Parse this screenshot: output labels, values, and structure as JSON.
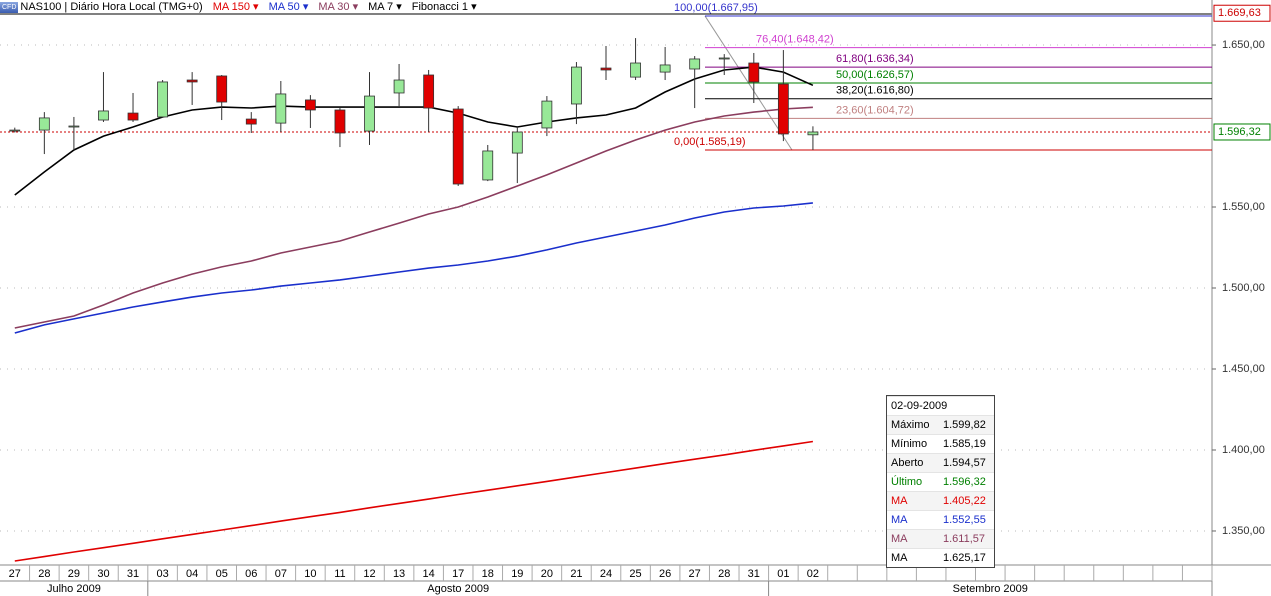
{
  "chart_data": {
    "type": "candlestick",
    "logo": "CFD",
    "title": "NAS100 | Diário Hora Local (TMG+0)",
    "categories": [
      "27",
      "28",
      "29",
      "30",
      "31",
      "03",
      "04",
      "05",
      "06",
      "07",
      "10",
      "11",
      "12",
      "13",
      "14",
      "17",
      "18",
      "19",
      "20",
      "21",
      "24",
      "25",
      "26",
      "27",
      "28",
      "31",
      "01",
      "02",
      null,
      null,
      null,
      null,
      null,
      null,
      null,
      null,
      null,
      null,
      null,
      null,
      null
    ],
    "months": [
      "Julho 2009",
      "Agosto 2009",
      "Setembro 2009"
    ],
    "open": [
      1597.5,
      1597.5,
      1599.5,
      1603.7,
      1608,
      1605.6,
      1628.4,
      1630.9,
      1604.3,
      1601.8,
      1616.1,
      1609.9,
      1596.9,
      1620.4,
      1631.5,
      1610.5,
      1566.7,
      1583.3,
      1598.8,
      1613.6,
      1635.8,
      1630.2,
      1633.3,
      1635.2,
      1641.4,
      1638.9,
      1625.9,
      1594.57,
      null,
      null,
      null,
      null,
      null,
      null,
      null,
      null,
      null,
      null,
      null,
      null,
      null
    ],
    "high": [
      1599,
      1608.6,
      1605.6,
      1633.3,
      1620.4,
      1628.4,
      1633.3,
      1631.5,
      1608.6,
      1627.8,
      1619.1,
      1611.1,
      1633.3,
      1638.3,
      1634.6,
      1612.3,
      1588.3,
      1599.4,
      1618.5,
      1639.5,
      1649.4,
      1654.3,
      1648.8,
      1643.2,
      1644.4,
      1645.1,
      1646.9,
      1599.82,
      null,
      null,
      null,
      null,
      null,
      null,
      null,
      null,
      null,
      null,
      null,
      null,
      null
    ],
    "low": [
      1596,
      1582.7,
      1585.2,
      1602.5,
      1602.5,
      1605,
      1613,
      1603.7,
      1595.7,
      1596.3,
      1598.8,
      1587,
      1588.3,
      1612.3,
      1596.3,
      1563,
      1566,
      1564.8,
      1593.8,
      1601.2,
      1628.4,
      1628.4,
      1628.4,
      1611.1,
      1631.5,
      1614.2,
      1590.7,
      1585.19,
      null,
      null,
      null,
      null,
      null,
      null,
      null,
      null,
      null,
      null,
      null,
      null,
      null
    ],
    "close": [
      1597.5,
      1605,
      1600,
      1609.3,
      1603.7,
      1627.2,
      1627.2,
      1614.8,
      1601.2,
      1619.8,
      1609.9,
      1595.7,
      1618.5,
      1628.4,
      1611.1,
      1564.2,
      1584.6,
      1596.3,
      1615.4,
      1636.4,
      1634.6,
      1638.9,
      1637.7,
      1641.4,
      1642,
      1627.2,
      1595.1,
      1596.32,
      null,
      null,
      null,
      null,
      null,
      null,
      null,
      null,
      null,
      null,
      null,
      null,
      null
    ],
    "up_color": "#98e898",
    "down_color": "#e00000",
    "series": [
      {
        "name": "MA 150",
        "color": "#e00000",
        "values": [
          1331.5,
          1334.2,
          1337.0,
          1339.7,
          1342.4,
          1345.2,
          1347.9,
          1350.6,
          1353.3,
          1356.1,
          1358.8,
          1361.5,
          1364.3,
          1367.0,
          1369.7,
          1372.5,
          1375.2,
          1377.9,
          1380.6,
          1383.4,
          1386.1,
          1388.8,
          1391.6,
          1394.3,
          1397.0,
          1399.8,
          1402.5,
          1405.22,
          null,
          null,
          null,
          null,
          null,
          null,
          null,
          null,
          null,
          null,
          null,
          null,
          null
        ]
      },
      {
        "name": "MA 50",
        "color": "#1a2fcc",
        "values": [
          1472.2,
          1477.2,
          1480.9,
          1484.6,
          1488.3,
          1491.4,
          1494.4,
          1496.9,
          1498.8,
          1501.2,
          1503.1,
          1505,
          1507.4,
          1509.9,
          1512.3,
          1514.2,
          1516.7,
          1519.7,
          1523.5,
          1527.8,
          1531.5,
          1535.2,
          1538.9,
          1543.2,
          1546.9,
          1549.4,
          1550.6,
          1552.55,
          null,
          null,
          null,
          null,
          null,
          null,
          null,
          null,
          null,
          null,
          null,
          null,
          null
        ]
      },
      {
        "name": "MA 30",
        "color": "#8b3d5e",
        "values": [
          1475.3,
          1479,
          1482.7,
          1489.5,
          1496.9,
          1503.1,
          1508.6,
          1513,
          1516.7,
          1521.6,
          1525.3,
          1529,
          1534.6,
          1540.1,
          1545.7,
          1550,
          1556.2,
          1563,
          1569.8,
          1577.2,
          1584.6,
          1591.4,
          1597.5,
          1602.5,
          1606.2,
          1608.6,
          1610.5,
          1611.57,
          null,
          null,
          null,
          null,
          null,
          null,
          null,
          null,
          null,
          null,
          null,
          null,
          null
        ]
      },
      {
        "name": "MA 7",
        "color": "#000000",
        "values": [
          1557.4,
          1571.6,
          1585.2,
          1593.8,
          1599.4,
          1605.6,
          1609.9,
          1611.7,
          1611.1,
          1612.3,
          1611.7,
          1611.7,
          1611.7,
          1611.7,
          1611.7,
          1608,
          1602.5,
          1599.4,
          1602.5,
          1605,
          1606.8,
          1611.1,
          1621,
          1629,
          1634.6,
          1636.4,
          1633.3,
          1625.17,
          null,
          null,
          null,
          null,
          null,
          null,
          null,
          null,
          null,
          null,
          null,
          null,
          null
        ]
      }
    ],
    "fibonacci": {
      "name": "Fibonacci 1",
      "levels": [
        {
          "label": "100,00(1.667,95)",
          "value": 1667.95,
          "color": "#3333cc"
        },
        {
          "label": "76,40(1.648,42)",
          "value": 1648.42,
          "color": "#d040d0"
        },
        {
          "label": "61,80(1.636,34)",
          "value": 1636.34,
          "color": "#800080"
        },
        {
          "label": "50,00(1.626,57)",
          "value": 1626.57,
          "color": "#008000"
        },
        {
          "label": "38,20(1.616,80)",
          "value": 1616.8,
          "color": "#000000"
        },
        {
          "label": "23,60(1.604,72)",
          "value": 1604.72,
          "color": "#c08080"
        },
        {
          "label": "0,00(1.585,19)",
          "value": 1585.19,
          "color": "#cc0000"
        }
      ]
    },
    "ylim": [
      1329,
      1677.8
    ],
    "yticks": [
      {
        "value": 1350,
        "label": "1.350,00"
      },
      {
        "value": 1400,
        "label": "1.400,00"
      },
      {
        "value": 1450,
        "label": "1.450,00"
      },
      {
        "value": 1500,
        "label": "1.500,00"
      },
      {
        "value": 1550,
        "label": "1.550,00"
      },
      {
        "value": 1650,
        "label": "1.650,00"
      }
    ],
    "price_tags": [
      {
        "value": 1669.63,
        "label": "1.669,63",
        "color": "#cc0000"
      },
      {
        "value": 1596.32,
        "label": "1.596,32",
        "color": "#008000"
      }
    ],
    "info_box": {
      "date": "02-09-2009",
      "rows": [
        {
          "name": "Máximo",
          "value": 1599.82,
          "value_label": "1.599,82",
          "color": "#000000"
        },
        {
          "name": "Mínimo",
          "value": 1585.19,
          "value_label": "1.585,19",
          "color": "#000000"
        },
        {
          "name": "Aberto",
          "value": 1594.57,
          "value_label": "1.594,57",
          "color": "#000000"
        },
        {
          "name": "Último",
          "value": 1596.32,
          "value_label": "1.596,32",
          "color": "#008000"
        },
        {
          "name": "MA",
          "value": 1405.22,
          "value_label": "1.405,22",
          "color": "#e00000"
        },
        {
          "name": "MA",
          "value": 1552.55,
          "value_label": "1.552,55",
          "color": "#1a2fcc"
        },
        {
          "name": "MA",
          "value": 1611.57,
          "value_label": "1.611,57",
          "color": "#8b3d5e"
        },
        {
          "name": "MA",
          "value": 1625.17,
          "value_label": "1.625,17",
          "color": "#000000"
        }
      ]
    }
  }
}
